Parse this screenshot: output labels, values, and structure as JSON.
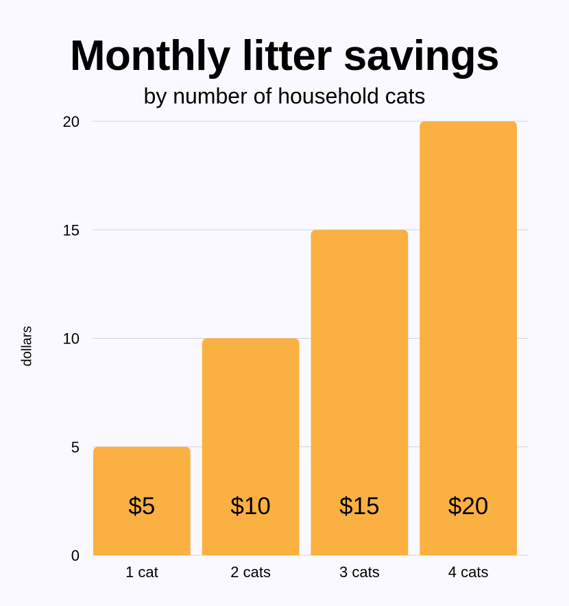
{
  "chart_data": {
    "type": "bar",
    "title": "Monthly litter savings",
    "subtitle": "by number of household cats",
    "xlabel": "",
    "ylabel": "dollars",
    "categories": [
      "1 cat",
      "2 cats",
      "3 cats",
      "4 cats"
    ],
    "values": [
      5,
      10,
      15,
      20
    ],
    "data_labels": [
      "$5",
      "$10",
      "$15",
      "$20"
    ],
    "ylim": [
      0,
      20
    ],
    "yticks": [
      0,
      5,
      10,
      15,
      20
    ],
    "grid": true,
    "bar_color": "#fbb042",
    "background": "#f9f9ff"
  }
}
